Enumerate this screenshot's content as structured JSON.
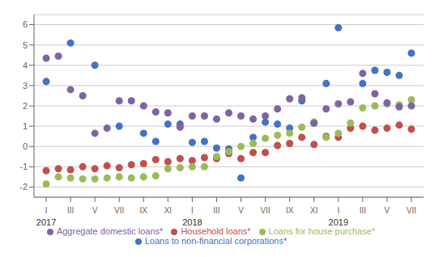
{
  "chart_data": {
    "type": "scatter",
    "xlim": [
      -0.5,
      15.5
    ],
    "xticks": [
      {
        "value": 0,
        "label": "I"
      },
      {
        "value": 1,
        "label": "III"
      },
      {
        "value": 2,
        "label": "V"
      },
      {
        "value": 3,
        "label": "VII"
      },
      {
        "value": 4,
        "label": "IX"
      },
      {
        "value": 5,
        "label": "XI"
      },
      {
        "value": 6,
        "label": "I"
      },
      {
        "value": 7,
        "label": "III"
      },
      {
        "value": 8,
        "label": "V"
      },
      {
        "value": 9,
        "label": "VII"
      },
      {
        "value": 10,
        "label": "IX"
      },
      {
        "value": 11,
        "label": "XI"
      },
      {
        "value": 12,
        "label": "I"
      },
      {
        "value": 13,
        "label": "III"
      },
      {
        "value": 14,
        "label": "V"
      },
      {
        "value": 15,
        "label": "VII"
      }
    ],
    "ylim": [
      -2.5,
      6.5
    ],
    "yticks": [
      -2,
      -1,
      0,
      1,
      2,
      3,
      4,
      5,
      6
    ],
    "annotations": [
      {
        "text": "2017",
        "x": 0
      },
      {
        "text": "2018",
        "x": 6
      },
      {
        "text": "2019",
        "x": 12
      }
    ],
    "grid": true,
    "legend": "bottom",
    "series": [
      {
        "name": "Loans to non-financial corporations*",
        "color": "#4472C4",
        "marker": "circle",
        "x": [
          0,
          1,
          2,
          3,
          4,
          4.5,
          5,
          5.5,
          6,
          6.5,
          7,
          7.5,
          8,
          8.5,
          9,
          9.5,
          10,
          10.5,
          11,
          11.5,
          12,
          13,
          13.5,
          14,
          14.5,
          15
        ],
        "values": [
          3.2,
          5.1,
          4.0,
          1.0,
          0.65,
          0.25,
          1.1,
          1.1,
          0.2,
          0.25,
          -0.08,
          -0.12,
          -1.55,
          0.45,
          1.2,
          1.1,
          0.9,
          2.25,
          1.15,
          3.1,
          5.85,
          3.1,
          3.75,
          3.65,
          3.5,
          4.6
        ]
      },
      {
        "name": "Household loans*",
        "color": "#C0504D",
        "marker": "circle",
        "x": [
          0,
          0.5,
          1,
          1.5,
          2,
          2.5,
          3,
          3.5,
          4,
          4.5,
          5,
          5.5,
          6,
          6.5,
          7,
          7.5,
          8,
          8.5,
          9,
          9.5,
          10,
          10.5,
          11,
          11.5,
          12,
          12.5,
          13,
          13.5,
          14,
          14.5,
          15
        ],
        "values": [
          -1.2,
          -1.1,
          -1.15,
          -1.0,
          -1.1,
          -0.95,
          -1.05,
          -0.9,
          -0.85,
          -0.65,
          -0.75,
          -0.6,
          -0.7,
          -0.55,
          -0.6,
          -0.35,
          -0.6,
          -0.3,
          -0.3,
          0.05,
          0.15,
          0.45,
          0.1,
          0.5,
          0.45,
          0.9,
          1.0,
          0.8,
          0.9,
          1.05,
          0.85
        ]
      },
      {
        "name": "Loans for house purchase*",
        "color": "#9BBB59",
        "marker": "circle",
        "x": [
          0,
          0.5,
          1,
          1.5,
          2,
          2.5,
          3,
          3.5,
          4,
          4.5,
          5,
          5.5,
          6,
          6.5,
          7,
          7.5,
          8,
          8.5,
          9,
          9.5,
          10,
          10.5,
          11,
          11.5,
          12,
          12.5,
          13,
          13.5,
          14,
          14.5,
          15
        ],
        "values": [
          -1.85,
          -1.5,
          -1.55,
          -1.6,
          -1.6,
          -1.55,
          -1.5,
          -1.55,
          -1.5,
          -1.45,
          -1.1,
          -1.05,
          -1.0,
          -1.0,
          -0.5,
          -0.25,
          0.0,
          0.15,
          0.4,
          0.55,
          0.65,
          0.95,
          1.2,
          0.45,
          0.65,
          1.15,
          1.9,
          2.0,
          2.1,
          2.05,
          2.3
        ]
      },
      {
        "name": "Aggregate domestic loans*",
        "color": "#8064A2",
        "marker": "circle",
        "x": [
          0,
          0.5,
          1,
          1.5,
          2,
          2.5,
          3,
          3.5,
          4,
          4.5,
          5,
          5.5,
          6,
          6.5,
          7,
          7.5,
          8,
          8.5,
          9,
          9.5,
          10,
          10.5,
          11,
          11.5,
          12,
          12.5,
          13,
          13.5,
          14,
          14.5,
          15
        ],
        "values": [
          4.35,
          4.45,
          2.8,
          2.5,
          0.65,
          0.9,
          2.25,
          2.25,
          2.0,
          1.7,
          1.65,
          0.95,
          1.5,
          1.5,
          1.35,
          1.65,
          1.5,
          1.35,
          1.5,
          1.85,
          2.35,
          2.4,
          1.15,
          1.85,
          2.1,
          2.2,
          3.6,
          2.6,
          2.15,
          1.95,
          2.0
        ]
      }
    ]
  }
}
